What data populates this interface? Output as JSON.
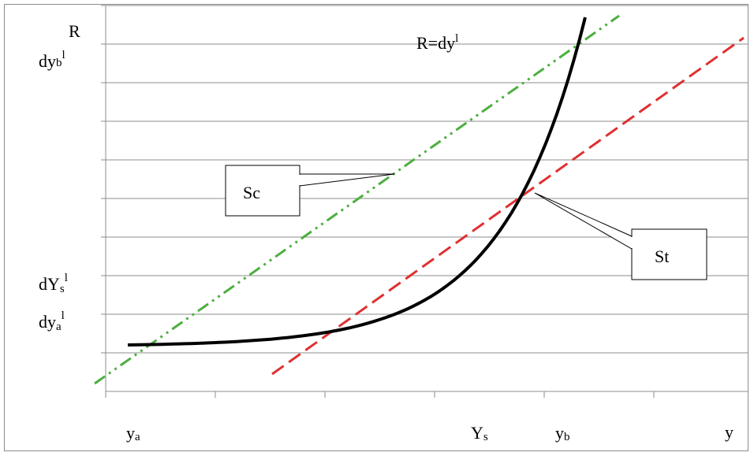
{
  "labels": {
    "r_axis": "R",
    "equation": "R=dy",
    "equation_sup": "l",
    "y_axis": "y",
    "dy_b_main": "dy",
    "dy_b_sub": "b",
    "dy_b_sup": "l",
    "dY_s_main": "dY",
    "dY_s_sub": "s",
    "dY_s_sup": "l",
    "dy_a_main": "dy",
    "dy_a_sub": "a",
    "dy_a_sup": "l",
    "y_a_main": "y",
    "y_a_sub": "a",
    "Y_s_main": "Y",
    "Y_s_sub": "s",
    "y_b_main": "y",
    "y_b_sub": "b",
    "sc_callout": "Sc",
    "st_callout": "St"
  },
  "colors": {
    "curve": "#000000",
    "sc_line": "#4caf3f",
    "st_line": "#e03030",
    "grid": "#8c8c8c"
  }
}
